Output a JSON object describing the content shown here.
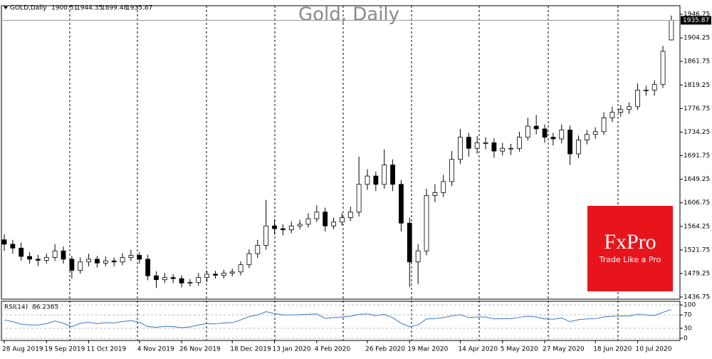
{
  "chart_data": {
    "type": "candlestick",
    "title": "Gold, Daily",
    "symbol": "GOLD,Daily",
    "up_color": "#ffffff",
    "down_color": "#000000",
    "open": [
      1540,
      1532,
      1525,
      1510,
      1505,
      1503,
      1508,
      1520,
      1505,
      1485,
      1500,
      1505,
      1498,
      1502,
      1500,
      1508,
      1512,
      1505,
      1475,
      1468,
      1472,
      1470,
      1462,
      1463,
      1472,
      1478,
      1476,
      1480,
      1482,
      1495,
      1515,
      1530,
      1565,
      1560,
      1558,
      1565,
      1568,
      1578,
      1590,
      1565,
      1572,
      1580,
      1590,
      1640,
      1655,
      1640,
      1675,
      1640,
      1570,
      1500,
      1520,
      1620,
      1625,
      1645,
      1685,
      1725,
      1705,
      1715,
      1715,
      1700,
      1705,
      1705,
      1725,
      1745,
      1740,
      1725,
      1722,
      1738,
      1695,
      1720,
      1730,
      1735,
      1760,
      1770,
      1775,
      1780,
      1810,
      1810,
      1820,
      1900.51
    ],
    "high": [
      1550,
      1540,
      1535,
      1518,
      1513,
      1515,
      1532,
      1528,
      1511,
      1508,
      1515,
      1511,
      1510,
      1508,
      1516,
      1522,
      1518,
      1513,
      1483,
      1480,
      1478,
      1476,
      1469,
      1480,
      1484,
      1484,
      1486,
      1488,
      1501,
      1523,
      1540,
      1612,
      1577,
      1568,
      1573,
      1576,
      1588,
      1602,
      1598,
      1580,
      1588,
      1600,
      1690,
      1667,
      1663,
      1703,
      1685,
      1648,
      1580,
      1532,
      1632,
      1640,
      1657,
      1700,
      1740,
      1733,
      1727,
      1725,
      1723,
      1715,
      1713,
      1735,
      1760,
      1765,
      1748,
      1733,
      1748,
      1746,
      1728,
      1738,
      1743,
      1770,
      1780,
      1783,
      1788,
      1822,
      1818,
      1828,
      1890,
      1944.35
    ],
    "low": [
      1520,
      1515,
      1502,
      1497,
      1493,
      1497,
      1502,
      1497,
      1470,
      1479,
      1492,
      1490,
      1492,
      1492,
      1494,
      1502,
      1497,
      1467,
      1453,
      1462,
      1462,
      1454,
      1456,
      1457,
      1464,
      1470,
      1470,
      1474,
      1476,
      1489,
      1507,
      1522,
      1550,
      1548,
      1552,
      1559,
      1562,
      1572,
      1555,
      1559,
      1566,
      1574,
      1582,
      1630,
      1628,
      1632,
      1628,
      1555,
      1455,
      1460,
      1512,
      1608,
      1617,
      1637,
      1677,
      1690,
      1695,
      1703,
      1688,
      1692,
      1693,
      1699,
      1719,
      1730,
      1715,
      1710,
      1714,
      1675,
      1687,
      1712,
      1722,
      1729,
      1752,
      1762,
      1767,
      1774,
      1800,
      1800,
      1814,
      1899.48
    ],
    "close": [
      1532,
      1525,
      1510,
      1505,
      1503,
      1508,
      1520,
      1505,
      1485,
      1500,
      1505,
      1498,
      1502,
      1500,
      1508,
      1512,
      1505,
      1475,
      1468,
      1472,
      1470,
      1462,
      1463,
      1472,
      1478,
      1476,
      1480,
      1482,
      1495,
      1515,
      1530,
      1565,
      1560,
      1558,
      1565,
      1568,
      1578,
      1590,
      1565,
      1572,
      1580,
      1590,
      1640,
      1655,
      1640,
      1675,
      1640,
      1570,
      1500,
      1520,
      1620,
      1625,
      1645,
      1685,
      1725,
      1705,
      1715,
      1715,
      1700,
      1705,
      1705,
      1725,
      1745,
      1740,
      1725,
      1722,
      1738,
      1695,
      1720,
      1730,
      1735,
      1760,
      1770,
      1775,
      1780,
      1810,
      1810,
      1820,
      1880,
      1935.87
    ],
    "ylim": [
      1432.9,
      1962.2
    ],
    "yticks": [
      1946.75,
      1904.25,
      1861.75,
      1819.25,
      1776.75,
      1734.25,
      1691.75,
      1649.25,
      1606.75,
      1564.25,
      1521.75,
      1479.25,
      1436.75
    ],
    "xticks": [
      {
        "value": 0,
        "label": "28 Aug 2019"
      },
      {
        "value": 5,
        "label": "19 Sep 2019"
      },
      {
        "value": 10,
        "label": "11 Oct 2019"
      },
      {
        "value": 16,
        "label": "4 Nov 2019"
      },
      {
        "value": 21,
        "label": "26 Nov 2019"
      },
      {
        "value": 27,
        "label": "18 Dec 2019"
      },
      {
        "value": 32,
        "label": "13 Jan 2020"
      },
      {
        "value": 37,
        "label": "4 Feb 2020"
      },
      {
        "value": 43,
        "label": "26 Feb 2020"
      },
      {
        "value": 48,
        "label": "19 Mar 2020"
      },
      {
        "value": 54,
        "label": "14 Apr 2020"
      },
      {
        "value": 59,
        "label": "5 May 2020"
      },
      {
        "value": 64,
        "label": "27 May 2020"
      },
      {
        "value": 70,
        "label": "18 Jun 2020"
      },
      {
        "value": 75,
        "label": "10 Jul 2020"
      }
    ],
    "rsi": {
      "name": "RSI(14)",
      "color": "#3a78c9",
      "values": [
        55,
        50,
        42,
        40,
        40,
        44,
        52,
        45,
        35,
        45,
        48,
        44,
        47,
        46,
        50,
        53,
        48,
        35,
        33,
        36,
        35,
        32,
        34,
        40,
        44,
        43,
        46,
        47,
        55,
        65,
        70,
        80,
        74,
        70,
        70,
        71,
        72,
        73,
        60,
        62,
        64,
        66,
        72,
        73,
        68,
        72,
        62,
        45,
        35,
        40,
        58,
        59,
        62,
        67,
        71,
        62,
        64,
        64,
        58,
        59,
        59,
        63,
        66,
        64,
        58,
        57,
        61,
        50,
        56,
        58,
        59,
        64,
        66,
        67,
        67,
        72,
        70,
        68,
        78,
        86.2365
      ],
      "ylim": [
        -6.5,
        110.9
      ],
      "yticks": [
        100,
        70,
        30,
        0
      ]
    }
  },
  "logo": {
    "name": "FxPro",
    "tagline": "Trade Like a Pro"
  }
}
